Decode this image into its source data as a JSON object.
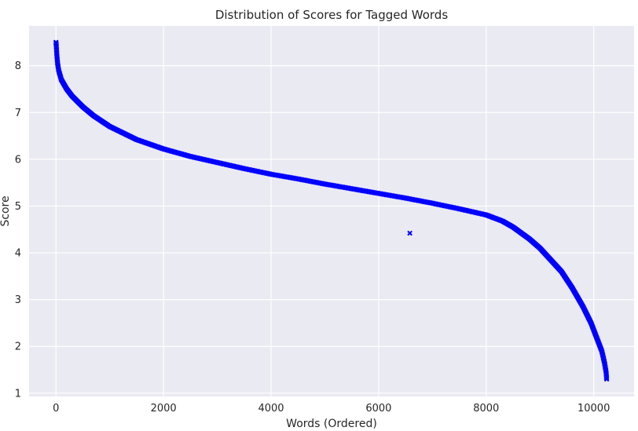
{
  "chart_data": {
    "type": "scatter",
    "title": "Distribution of Scores for Tagged Words",
    "xlabel": "Words (Ordered)",
    "ylabel": "Score",
    "xlim": [
      -500,
      10750
    ],
    "ylim": [
      0.93,
      8.85
    ],
    "xticks": [
      0,
      2000,
      4000,
      6000,
      8000,
      10000
    ],
    "yticks": [
      1,
      2,
      3,
      4,
      5,
      6,
      7,
      8
    ],
    "grid": true,
    "marker": "x",
    "marker_color": "#0000ff",
    "background_color": "#eaeaf2",
    "curve_points": [
      [
        0,
        8.5
      ],
      [
        5,
        8.45
      ],
      [
        15,
        8.25
      ],
      [
        30,
        8.05
      ],
      [
        50,
        7.9
      ],
      [
        100,
        7.7
      ],
      [
        200,
        7.5
      ],
      [
        300,
        7.35
      ],
      [
        500,
        7.12
      ],
      [
        700,
        6.93
      ],
      [
        1000,
        6.7
      ],
      [
        1500,
        6.42
      ],
      [
        2000,
        6.22
      ],
      [
        2500,
        6.06
      ],
      [
        3000,
        5.93
      ],
      [
        3500,
        5.8
      ],
      [
        4000,
        5.68
      ],
      [
        4500,
        5.58
      ],
      [
        5000,
        5.47
      ],
      [
        5500,
        5.37
      ],
      [
        6000,
        5.27
      ],
      [
        6500,
        5.17
      ],
      [
        7000,
        5.06
      ],
      [
        7500,
        4.94
      ],
      [
        8000,
        4.81
      ],
      [
        8300,
        4.68
      ],
      [
        8500,
        4.55
      ],
      [
        8800,
        4.3
      ],
      [
        9000,
        4.1
      ],
      [
        9200,
        3.85
      ],
      [
        9400,
        3.6
      ],
      [
        9600,
        3.25
      ],
      [
        9800,
        2.85
      ],
      [
        9950,
        2.5
      ],
      [
        10050,
        2.2
      ],
      [
        10150,
        1.9
      ],
      [
        10200,
        1.65
      ],
      [
        10230,
        1.45
      ],
      [
        10240,
        1.3
      ]
    ],
    "outliers": [
      [
        6580,
        4.42
      ]
    ]
  }
}
